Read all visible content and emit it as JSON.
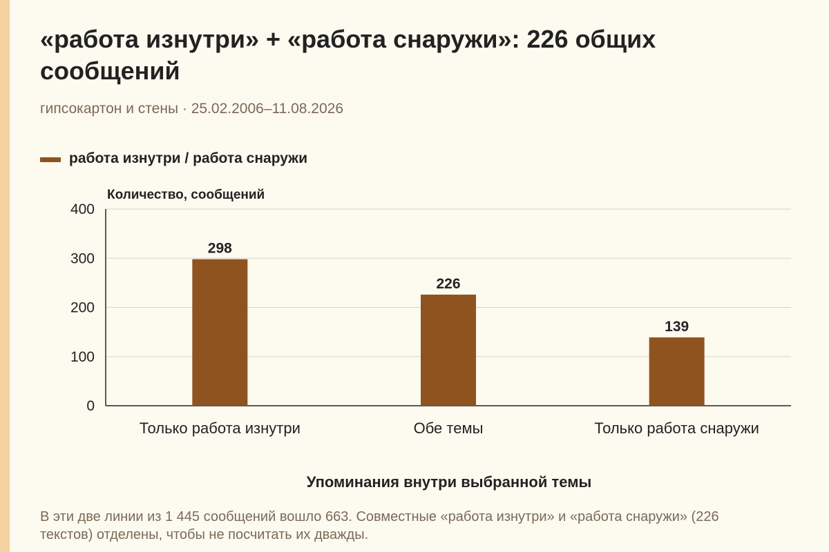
{
  "header": {
    "title": "«работа изнутри» + «работа снаружи»: 226 общих сообщений",
    "subtitle": "гипсокартон и стены · 25.02.2006–11.08.2026"
  },
  "legend": {
    "label": "работа изнутри / работа снаружи"
  },
  "footer": {
    "note": "В эти две линии из 1 445 сообщений вошло 663. Совместные «работа изнутри» и «работа снаружи» (226 текстов) отделены, чтобы не посчитать их дважды."
  },
  "colors": {
    "bar": "#8f5320",
    "grid": "#d9d3c4",
    "axis": "#222222",
    "background": "#fdfaf0"
  },
  "chart_data": {
    "type": "bar",
    "categories": [
      "Только работа изнутри",
      "Обе темы",
      "Только работа снаружи"
    ],
    "series": [
      {
        "name": "работа изнутри / работа снаружи",
        "values": [
          298,
          226,
          139
        ]
      }
    ],
    "value_labels": [
      "298",
      "226",
      "139"
    ],
    "ylabel": "Количество, сообщений",
    "xlabel": "Упоминания внутри выбранной темы",
    "ylim": [
      0,
      400
    ],
    "yticks": [
      0,
      100,
      200,
      300,
      400
    ],
    "grid": true,
    "legend_position": "top-left"
  }
}
